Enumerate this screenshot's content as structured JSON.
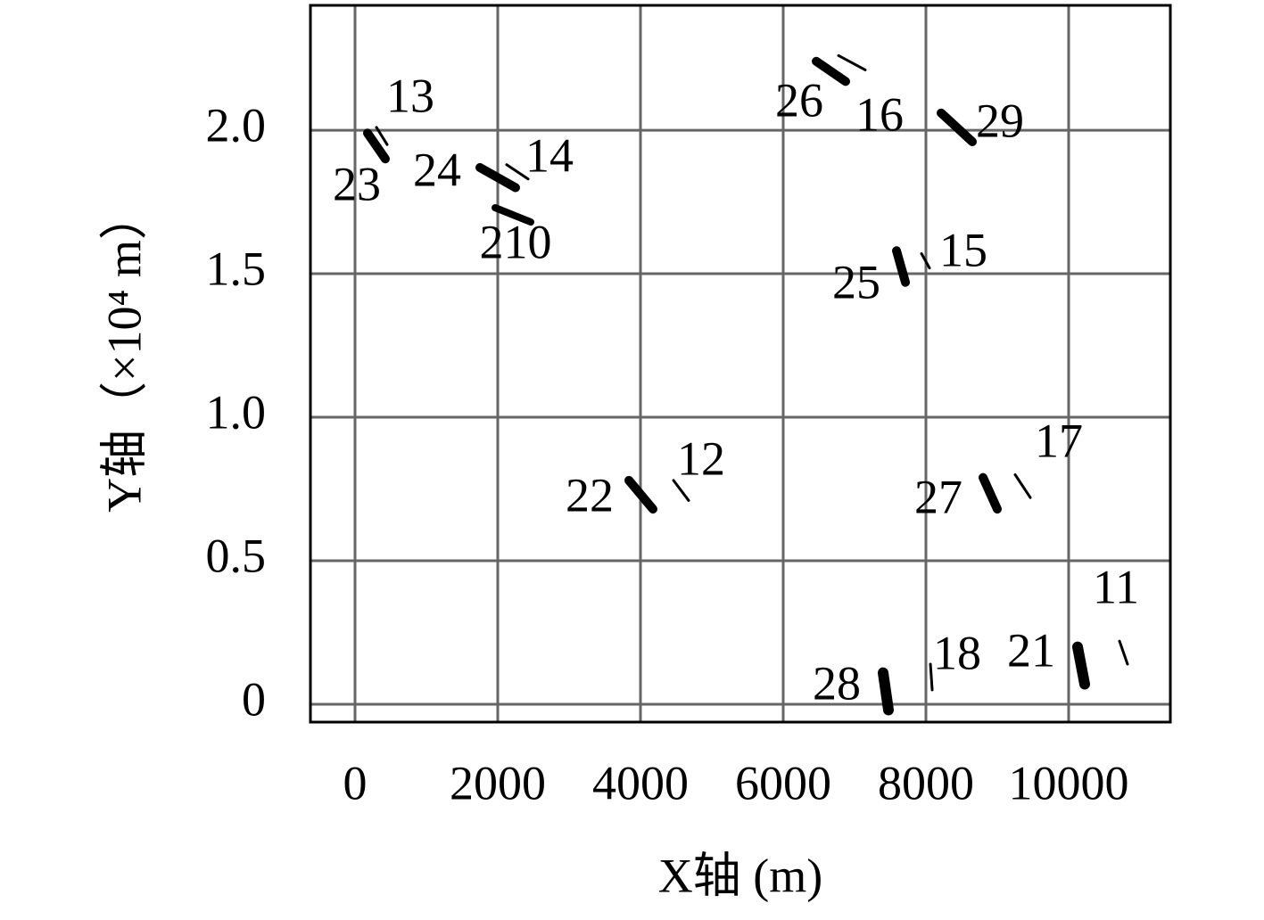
{
  "chart_data": {
    "type": "line",
    "xlabel": "X轴 (m)",
    "ylabel": "Y轴（×10⁴ m）",
    "xlim": [
      -625,
      11425
    ],
    "xticks": [
      0,
      2000,
      4000,
      6000,
      8000,
      10000
    ],
    "ylim": [
      -0.062,
      2.435
    ],
    "yticks": [
      0,
      0.5,
      {
        "value": 1,
        "label": "1.0"
      },
      1.5,
      {
        "value": 2,
        "label": "2.0"
      }
    ],
    "grid": true,
    "color": "#000000",
    "series": [
      {
        "name": "23",
        "x": [
          175,
          425
        ],
        "y": [
          1.99,
          1.9
        ]
      },
      {
        "name": "13",
        "x": [
          300,
          450
        ],
        "y": [
          2.01,
          1.95
        ]
      },
      {
        "name": "24",
        "x": [
          1750,
          2250
        ],
        "y": [
          1.87,
          1.8
        ]
      },
      {
        "name": "14",
        "x": [
          2125,
          2425
        ],
        "y": [
          1.88,
          1.83
        ]
      },
      {
        "name": "210",
        "x": [
          1963,
          2463
        ],
        "y": [
          1.73,
          1.68
        ]
      },
      {
        "name": "26",
        "x": [
          6463,
          6875
        ],
        "y": [
          2.24,
          2.17
        ]
      },
      {
        "name": "16",
        "x": [
          6775,
          7150
        ],
        "y": [
          2.26,
          2.21
        ]
      },
      {
        "name": "29",
        "x": [
          8213,
          8650
        ],
        "y": [
          2.06,
          1.96
        ]
      },
      {
        "name": "25",
        "x": [
          7588,
          7713
        ],
        "y": [
          1.58,
          1.47
        ]
      },
      {
        "name": "15",
        "x": [
          7938,
          8050
        ],
        "y": [
          1.57,
          1.52
        ]
      },
      {
        "name": "22",
        "x": [
          3838,
          4175
        ],
        "y": [
          0.78,
          0.68
        ]
      },
      {
        "name": "12",
        "x": [
          4463,
          4675
        ],
        "y": [
          0.78,
          0.71
        ]
      },
      {
        "name": "27",
        "x": [
          8800,
          9000
        ],
        "y": [
          0.79,
          0.68
        ]
      },
      {
        "name": "17",
        "x": [
          9250,
          9463
        ],
        "y": [
          0.8,
          0.72
        ]
      },
      {
        "name": "28",
        "x": [
          7400,
          7475
        ],
        "y": [
          0.11,
          -0.02
        ]
      },
      {
        "name": "18",
        "x": [
          8063,
          8088
        ],
        "y": [
          0.14,
          0.05
        ]
      },
      {
        "name": "21",
        "x": [
          10125,
          10225
        ],
        "y": [
          0.2,
          0.07
        ]
      },
      {
        "name": "11",
        "x": [
          10713,
          10825
        ],
        "y": [
          0.22,
          0.14
        ]
      }
    ]
  }
}
